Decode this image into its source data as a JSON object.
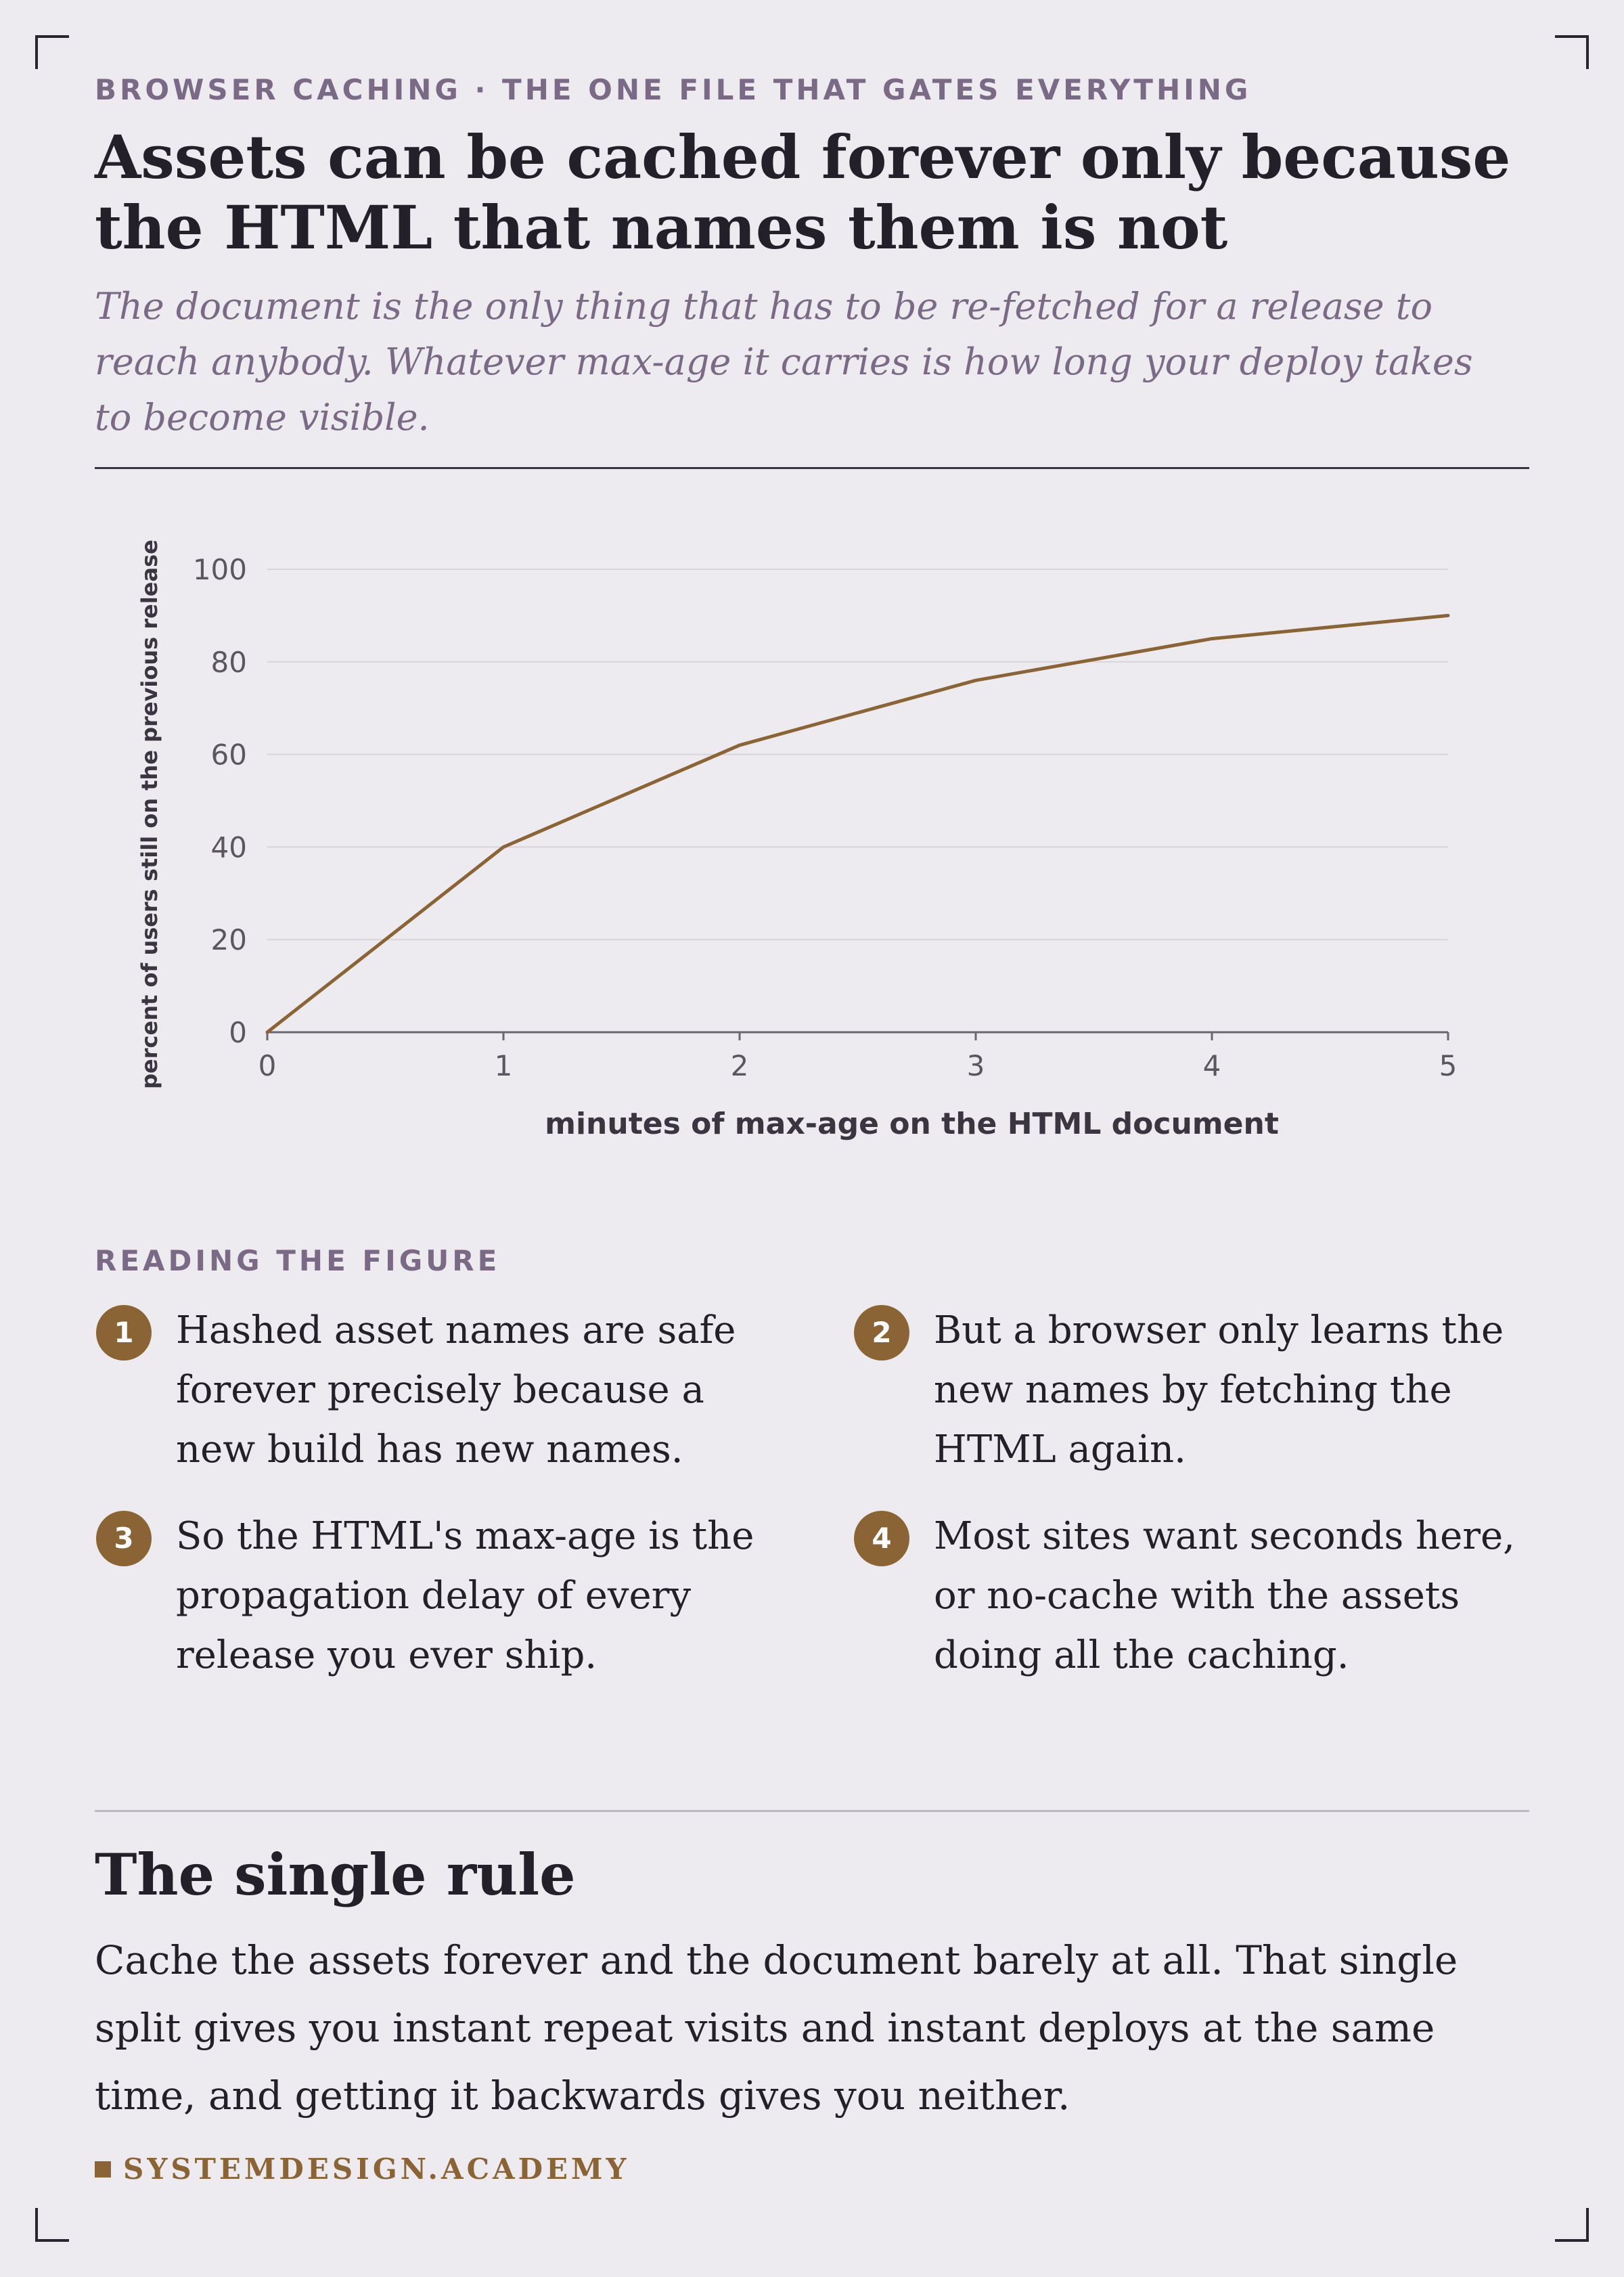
{
  "kicker": "BROWSER CACHING · THE ONE FILE THAT GATES EVERYTHING",
  "title": "Assets can be cached forever only because the HTML that names them is not",
  "subtitle": "The document is the only thing that has to be re-fetched for a release to reach anybody. Whatever max-age it carries is how long your deploy takes to become visible.",
  "chart_data": {
    "type": "line",
    "xlabel": "minutes of max-age on the HTML document",
    "ylabel": "percent of users still on the previous release",
    "x": [
      0,
      1,
      2,
      3,
      4,
      5
    ],
    "series": [
      {
        "values": [
          0,
          40,
          62,
          76,
          85,
          90
        ]
      }
    ],
    "xlim": [
      0,
      5
    ],
    "ylim": [
      0,
      100
    ],
    "xticks": [
      "0",
      "1",
      "2",
      "3",
      "4",
      "5"
    ],
    "yticks": [
      "0",
      "20",
      "40",
      "60",
      "80",
      "100"
    ],
    "grid": true,
    "line_color": "#8a6434"
  },
  "reading": {
    "label": "READING THE FIGURE",
    "notes": [
      {
        "num": "1",
        "text": "Hashed asset names are safe forever precisely because a new build has new names."
      },
      {
        "num": "2",
        "text": "But a browser only learns the new names by fetching the HTML again."
      },
      {
        "num": "3",
        "text": "So the HTML's max-age is the propagation delay of every release you ever ship."
      },
      {
        "num": "4",
        "text": "Most sites want seconds here, or no-cache with the assets doing all the caching."
      }
    ]
  },
  "rule": {
    "title": "The single rule",
    "body": "Cache the assets forever and the document barely at all. That single split gives you instant repeat visits and instant deploys at the same time, and getting it backwards gives you neither."
  },
  "brand": "SYSTEMDESIGN.ACADEMY"
}
